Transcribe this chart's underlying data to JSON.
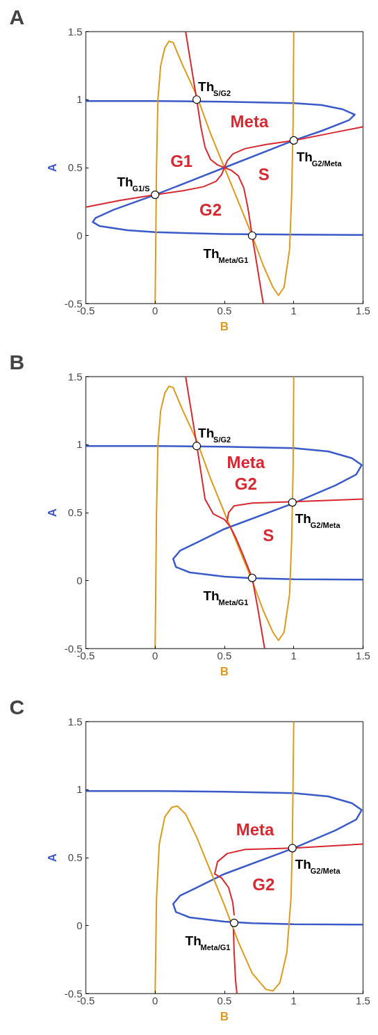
{
  "chart_data": [
    {
      "type": "line",
      "title": "A",
      "xlabel": "B",
      "ylabel": "A",
      "xlim": [
        -0.5,
        1.5
      ],
      "ylim": [
        -0.5,
        1.5
      ],
      "xticks": [
        -0.5,
        0,
        0.5,
        1,
        1.5
      ],
      "yticks": [
        -0.5,
        0,
        0.5,
        1,
        1.5
      ],
      "grid": false,
      "line_style": "solid",
      "series": [
        {
          "color": "#3a5bc7",
          "x": [
            -0.5,
            0,
            0.5,
            1,
            1.2,
            1.35,
            1.44,
            1.4,
            1.2,
            1,
            0.5,
            0,
            -0.3,
            -0.43,
            -0.45,
            -0.4,
            -0.2,
            0,
            0.5,
            1,
            1.5
          ],
          "values": [
            0.99,
            0.99,
            0.985,
            0.975,
            0.96,
            0.93,
            0.89,
            0.85,
            0.77,
            0.7,
            0.5,
            0.3,
            0.19,
            0.13,
            0.1,
            0.07,
            0.04,
            0.025,
            0.012,
            0.008,
            0.005
          ]
        },
        {
          "type": "line",
          "color": "#d99a1e",
          "x": [
            0,
            0.005,
            0.01,
            0.02,
            0.04,
            0.07,
            0.1,
            0.13,
            0.2,
            0.3,
            0.4,
            0.5,
            0.6,
            0.7,
            0.78,
            0.85,
            0.89,
            0.93,
            0.97,
            0.985,
            0.995,
            1.0
          ],
          "values": [
            -0.5,
            0,
            0.5,
            1.0,
            1.25,
            1.38,
            1.43,
            1.42,
            1.25,
            1.03,
            0.75,
            0.5,
            0.25,
            0.0,
            -0.22,
            -0.38,
            -0.44,
            -0.38,
            -0.1,
            0.3,
            0.8,
            1.5
          ]
        },
        {
          "color": "#d62830",
          "x": [
            0.22,
            0.26,
            0.3,
            0.33,
            0.36,
            0.4,
            0.45,
            0.5,
            0.55,
            0.6,
            0.64,
            0.67,
            0.7,
            0.74,
            0.78
          ],
          "values": [
            1.5,
            1.25,
            1.0,
            0.8,
            0.65,
            0.56,
            0.52,
            0.5,
            0.48,
            0.44,
            0.35,
            0.2,
            0.0,
            -0.25,
            -0.5
          ]
        },
        {
          "color": "#d62830",
          "x": [
            -0.5,
            -0.25,
            0,
            0.2,
            0.35,
            0.44,
            0.48,
            0.5,
            0.52,
            0.56,
            0.65,
            0.8,
            1,
            1.25,
            1.5
          ],
          "values": [
            0.21,
            0.26,
            0.3,
            0.33,
            0.36,
            0.4,
            0.45,
            0.5,
            0.55,
            0.6,
            0.64,
            0.67,
            0.7,
            0.75,
            0.8
          ]
        },
        {
          "type": "scatter",
          "marker": "circle",
          "color": "#ffffff",
          "x": [
            0,
            0.3,
            1.0,
            0.7
          ],
          "values": [
            0.3,
            1.0,
            0.7,
            0.0
          ],
          "value_labels": [
            "Th$_{G1/S}$",
            "Th$_{S/G2}$",
            "Th$_{G2/Meta}$",
            "Th$_{Meta/G1}$"
          ]
        }
      ],
      "annotations": [
        "S",
        "G2",
        "Meta",
        "G1"
      ]
    },
    {
      "type": "line",
      "title": "B",
      "xlabel": "B",
      "ylabel": "A",
      "xlim": [
        -0.5,
        1.5
      ],
      "ylim": [
        -0.5,
        1.5
      ],
      "xticks": [
        -0.5,
        0,
        0.5,
        1,
        1.5
      ],
      "yticks": [
        -0.5,
        0,
        0.5,
        1,
        1.5
      ],
      "grid": false,
      "line_style": "solid",
      "series": [
        {
          "type": "line",
          "color": "#3a5bc7",
          "x": [
            -0.5,
            0,
            0.5,
            1,
            1.25,
            1.42,
            1.49,
            1.45,
            1.3,
            1,
            0.5,
            0.3,
            0.18,
            0.13,
            0.15,
            0.25,
            0.5,
            0.7,
            1,
            1.5
          ],
          "values": [
            0.99,
            0.99,
            0.985,
            0.975,
            0.95,
            0.9,
            0.85,
            0.78,
            0.7,
            0.57,
            0.38,
            0.28,
            0.22,
            0.16,
            0.1,
            0.06,
            0.03,
            0.018,
            0.01,
            0.008
          ]
        },
        {
          "type": "line",
          "color": "#d99a1e",
          "x": [
            0,
            0.005,
            0.01,
            0.02,
            0.04,
            0.07,
            0.1,
            0.13,
            0.2,
            0.3,
            0.4,
            0.5,
            0.6,
            0.7,
            0.78,
            0.85,
            0.89,
            0.93,
            0.97,
            0.985,
            0.995,
            1.0
          ],
          "values": [
            -0.5,
            0,
            0.5,
            1.0,
            1.25,
            1.38,
            1.43,
            1.42,
            1.25,
            1.03,
            0.75,
            0.5,
            0.25,
            0.0,
            -0.22,
            -0.38,
            -0.44,
            -0.38,
            -0.1,
            0.3,
            0.8,
            1.5
          ]
        },
        {
          "color": "#d62830",
          "x": [
            0.22,
            0.26,
            0.3,
            0.33,
            0.36,
            0.42,
            0.5,
            0.54,
            0.58,
            0.63,
            0.7,
            0.74,
            0.79
          ],
          "values": [
            1.5,
            1.25,
            1.0,
            0.8,
            0.6,
            0.49,
            0.45,
            0.4,
            0.32,
            0.2,
            0.02,
            -0.2,
            -0.5
          ]
        },
        {
          "color": "#d62830",
          "x": [
            0.52,
            0.53,
            0.57,
            0.7,
            1,
            1.5
          ],
          "values": [
            0.44,
            0.5,
            0.55,
            0.57,
            0.58,
            0.6
          ]
        },
        {
          "type": "scatter",
          "marker": "circle",
          "color": "#ffffff",
          "x": [
            0.3,
            0.99,
            0.7
          ],
          "values": [
            0.99,
            0.575,
            0.02
          ],
          "value_labels": [
            "Th$_{S/G2}$",
            "Th$_{G2/Meta}$",
            "Th$_{Meta/G1}$"
          ]
        }
      ],
      "annotations": [
        "G2",
        "S",
        "Meta"
      ]
    },
    {
      "type": "line",
      "title": "C",
      "xlabel": "B",
      "ylabel": "A",
      "xlim": [
        -0.5,
        1.5
      ],
      "ylim": [
        -0.5,
        1.5
      ],
      "xticks": [
        -0.5,
        0,
        0.5,
        1,
        1.5
      ],
      "yticks": [
        -0.5,
        0,
        0.5,
        1,
        1.5
      ],
      "grid": false,
      "line_style": "solid",
      "series": [
        {
          "type": "line",
          "color": "#3a5bc7",
          "x": [
            -0.5,
            0,
            0.5,
            1,
            1.25,
            1.42,
            1.49,
            1.45,
            1.3,
            1,
            0.5,
            0.3,
            0.18,
            0.13,
            0.15,
            0.25,
            0.5,
            0.7,
            1,
            1.5
          ],
          "values": [
            0.99,
            0.99,
            0.985,
            0.975,
            0.95,
            0.9,
            0.85,
            0.78,
            0.7,
            0.57,
            0.38,
            0.28,
            0.22,
            0.16,
            0.1,
            0.06,
            0.03,
            0.018,
            0.01,
            0.008
          ]
        },
        {
          "color": "#d99a1e",
          "x": [
            0,
            0.01,
            0.03,
            0.07,
            0.12,
            0.16,
            0.22,
            0.3,
            0.4,
            0.5,
            0.6,
            0.7,
            0.8,
            0.85,
            0.9,
            0.95,
            0.98,
            0.99,
            1.0
          ],
          "values": [
            -0.5,
            0.2,
            0.6,
            0.8,
            0.87,
            0.88,
            0.82,
            0.65,
            0.4,
            0.15,
            -0.12,
            -0.35,
            -0.47,
            -0.48,
            -0.42,
            -0.2,
            0.2,
            0.6,
            1.5
          ]
        },
        {
          "color": "#d62830",
          "x": [
            0.43,
            0.48,
            0.53,
            0.56,
            0.57,
            null,
            0.565,
            0.57,
            0.58,
            0.59
          ],
          "values": [
            0.38,
            0.35,
            0.28,
            0.17,
            0.08,
            null,
            -0.03,
            -0.2,
            -0.4,
            -0.5
          ]
        },
        {
          "color": "#d62830",
          "x": [
            0.43,
            0.45,
            0.52,
            0.65,
            1,
            1.5
          ],
          "values": [
            0.38,
            0.47,
            0.53,
            0.56,
            0.57,
            0.6
          ]
        },
        {
          "type": "scatter",
          "marker": "circle",
          "color": "#ffffff",
          "x": [
            0.99,
            0.57
          ],
          "values": [
            0.57,
            0.02
          ],
          "value_labels": [
            "Th$_{G2/Meta}$",
            "Th$_{Meta/G1}$"
          ]
        }
      ],
      "annotations": [
        "G2",
        "Meta"
      ]
    }
  ]
}
